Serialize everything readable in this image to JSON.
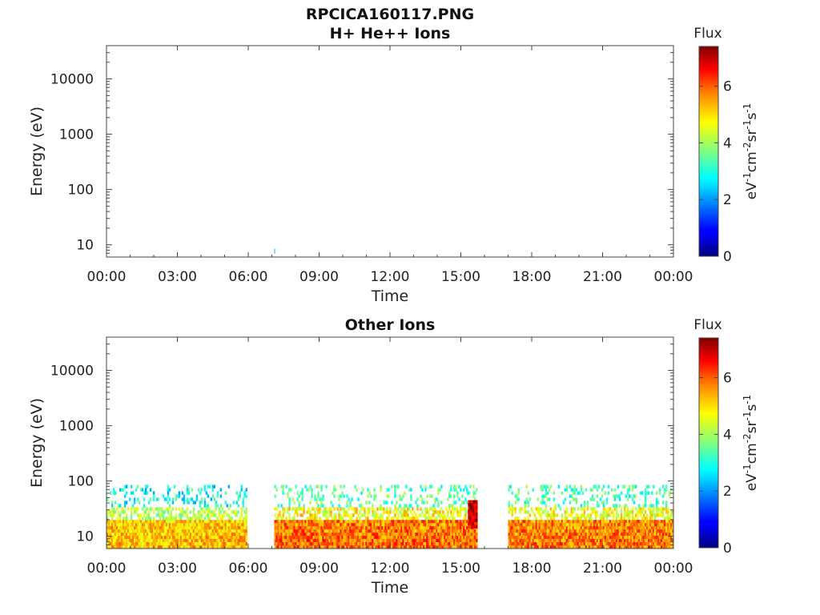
{
  "figure_title": "RPCICA160117.PNG",
  "chart_data": [
    {
      "type": "heatmap",
      "title": "H+ He++ Ions",
      "xlabel": "Time",
      "ylabel": "Energy (eV)",
      "y_scale": "log",
      "ylim": [
        6,
        40000
      ],
      "xlim": [
        0,
        24
      ],
      "x_ticks": [
        "00:00",
        "03:00",
        "06:00",
        "09:00",
        "12:00",
        "15:00",
        "18:00",
        "21:00",
        "00:00"
      ],
      "y_ticks": [
        10,
        100,
        1000,
        10000
      ],
      "y_tick_labels": [
        "10",
        "100",
        "1000",
        "10000"
      ],
      "colorbar": {
        "title": "Flux",
        "label": "eV-1cm-2sr-1s-1",
        "range": [
          0,
          7.4
        ],
        "ticks": [
          "0",
          "2",
          "4",
          "6"
        ]
      },
      "colors": {
        "low": "#00007f",
        "high": "#7f0000"
      },
      "segments": [
        {
          "start_hour": 7.1,
          "end_hour": 7.12,
          "emin": 7,
          "emax": 8.5,
          "level": 2.6
        }
      ]
    },
    {
      "type": "heatmap",
      "title": "Other Ions",
      "xlabel": "Time",
      "ylabel": "Energy (eV)",
      "y_scale": "log",
      "ylim": [
        6,
        40000
      ],
      "xlim": [
        0,
        24
      ],
      "x_ticks": [
        "00:00",
        "03:00",
        "06:00",
        "09:00",
        "12:00",
        "15:00",
        "18:00",
        "21:00",
        "00:00"
      ],
      "y_ticks": [
        10,
        100,
        1000,
        10000
      ],
      "y_tick_labels": [
        "10",
        "100",
        "1000",
        "10000"
      ],
      "colorbar": {
        "title": "Flux",
        "label": "eV-1cm-2sr-1s-1",
        "range": [
          0,
          7.4
        ],
        "ticks": [
          "0",
          "2",
          "4",
          "6"
        ]
      },
      "colors": {
        "low": "#00007f",
        "high": "#7f0000"
      },
      "segments": [
        {
          "start_hour": 0.0,
          "end_hour": 5.95,
          "emin": 6,
          "emax": 85,
          "level": 5.3
        },
        {
          "start_hour": 7.1,
          "end_hour": 15.7,
          "emin": 6,
          "emax": 85,
          "level": 5.9
        },
        {
          "start_hour": 15.3,
          "end_hour": 15.7,
          "emin": 14,
          "emax": 45,
          "level": 7.0
        },
        {
          "start_hour": 17.0,
          "end_hour": 24.0,
          "emin": 6,
          "emax": 85,
          "level": 5.8
        }
      ]
    }
  ]
}
